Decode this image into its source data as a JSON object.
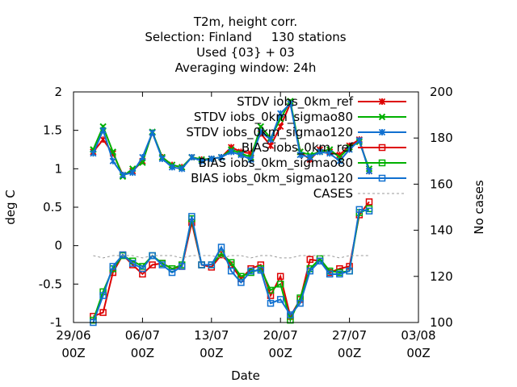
{
  "chart_data": {
    "type": "line",
    "title_lines": [
      "T2m, height corr.",
      "Selection: Finland     130 stations",
      "Used {03} + 03",
      "Averaging window: 24h"
    ],
    "xlabel": "Date",
    "ylabel": "deg C",
    "y2label": "No cases",
    "xlim": [
      0,
      35
    ],
    "ylim": [
      -1,
      2
    ],
    "y2lim": [
      100,
      200
    ],
    "x_ticks": [
      {
        "x": 0,
        "label": "29/06",
        "sub": "00Z"
      },
      {
        "x": 7,
        "label": "06/07",
        "sub": "00Z"
      },
      {
        "x": 14,
        "label": "13/07",
        "sub": "00Z"
      },
      {
        "x": 21,
        "label": "20/07",
        "sub": "00Z"
      },
      {
        "x": 28,
        "label": "27/07",
        "sub": "00Z"
      },
      {
        "x": 35,
        "label": "03/08",
        "sub": "00Z"
      }
    ],
    "y_ticks": [
      {
        "v": -1,
        "label": "-1"
      },
      {
        "v": -0.5,
        "label": "-0.5"
      },
      {
        "v": 0,
        "label": "0"
      },
      {
        "v": 0.5,
        "label": "0.5"
      },
      {
        "v": 1,
        "label": "1"
      },
      {
        "v": 1.5,
        "label": "1.5"
      },
      {
        "v": 2,
        "label": "2"
      }
    ],
    "y2_ticks": [
      {
        "v": 100,
        "label": "100"
      },
      {
        "v": 120,
        "label": "120"
      },
      {
        "v": 140,
        "label": "140"
      },
      {
        "v": 160,
        "label": "160"
      },
      {
        "v": 180,
        "label": "180"
      },
      {
        "v": 200,
        "label": "200"
      }
    ],
    "legend_position": "top-right",
    "series": [
      {
        "name": "STDV iobs_0km_ref",
        "color": "#dd0000",
        "marker": "star",
        "axis": "y",
        "x": [
          2,
          3,
          4,
          5,
          6,
          7,
          8,
          9,
          10,
          11,
          12,
          13,
          14,
          15,
          16,
          17,
          18,
          19,
          20,
          21,
          22,
          23,
          24,
          25,
          26,
          27,
          28,
          29,
          30
        ],
        "y": [
          1.22,
          1.38,
          1.2,
          0.92,
          0.97,
          1.1,
          1.47,
          1.15,
          1.05,
          1.02,
          1.15,
          1.12,
          1.13,
          1.15,
          1.28,
          1.22,
          1.2,
          1.46,
          1.3,
          1.55,
          1.85,
          1.22,
          1.12,
          1.25,
          1.22,
          1.18,
          1.3,
          1.38,
          0.97
        ]
      },
      {
        "name": "STDV iobs_0km_sigmao80",
        "color": "#00b000",
        "marker": "cross",
        "axis": "y",
        "x": [
          2,
          3,
          4,
          5,
          6,
          7,
          8,
          9,
          10,
          11,
          12,
          13,
          14,
          15,
          16,
          17,
          18,
          19,
          20,
          21,
          22,
          23,
          24,
          25,
          26,
          27,
          28,
          29,
          30
        ],
        "y": [
          1.25,
          1.55,
          1.22,
          0.9,
          1.0,
          1.08,
          1.48,
          1.15,
          1.05,
          1.02,
          1.15,
          1.12,
          1.13,
          1.15,
          1.25,
          1.2,
          1.15,
          1.55,
          1.4,
          1.65,
          1.88,
          1.22,
          1.18,
          1.22,
          1.25,
          1.15,
          1.28,
          1.35,
          1.0
        ]
      },
      {
        "name": "STDV iobs_0km_sigmao120",
        "color": "#1070d0",
        "marker": "star",
        "axis": "y",
        "x": [
          2,
          3,
          4,
          5,
          6,
          7,
          8,
          9,
          10,
          11,
          12,
          13,
          14,
          15,
          16,
          17,
          18,
          19,
          20,
          21,
          22,
          23,
          24,
          25,
          26,
          27,
          28,
          29,
          30
        ],
        "y": [
          1.2,
          1.5,
          1.1,
          0.92,
          0.95,
          1.15,
          1.47,
          1.13,
          1.02,
          1.0,
          1.15,
          1.1,
          1.13,
          1.15,
          1.22,
          1.18,
          1.12,
          1.48,
          1.38,
          1.72,
          1.85,
          1.18,
          1.15,
          1.22,
          1.2,
          1.1,
          1.25,
          1.37,
          0.97
        ]
      },
      {
        "name": "BIAS iobs_0km_ref",
        "color": "#dd0000",
        "marker": "square",
        "axis": "y",
        "x": [
          2,
          3,
          4,
          5,
          6,
          7,
          8,
          9,
          10,
          11,
          12,
          13,
          14,
          15,
          16,
          17,
          18,
          19,
          20,
          21,
          22,
          23,
          24,
          25,
          26,
          27,
          28,
          29,
          30
        ],
        "y": [
          -0.92,
          -0.87,
          -0.35,
          -0.12,
          -0.25,
          -0.37,
          -0.25,
          -0.23,
          -0.3,
          -0.27,
          0.3,
          -0.25,
          -0.28,
          -0.12,
          -0.25,
          -0.43,
          -0.3,
          -0.25,
          -0.65,
          -0.4,
          -0.92,
          -0.7,
          -0.18,
          -0.2,
          -0.35,
          -0.3,
          -0.27,
          0.4,
          0.57
        ]
      },
      {
        "name": "BIAS iobs_0km_sigmao80",
        "color": "#00b000",
        "marker": "square",
        "axis": "y",
        "x": [
          2,
          3,
          4,
          5,
          6,
          7,
          8,
          9,
          10,
          11,
          12,
          13,
          14,
          15,
          16,
          17,
          18,
          19,
          20,
          21,
          22,
          23,
          24,
          25,
          26,
          27,
          28,
          29,
          30
        ],
        "y": [
          -0.97,
          -0.6,
          -0.3,
          -0.13,
          -0.2,
          -0.27,
          -0.13,
          -0.23,
          -0.3,
          -0.25,
          0.35,
          -0.25,
          -0.25,
          -0.1,
          -0.22,
          -0.4,
          -0.35,
          -0.3,
          -0.58,
          -0.5,
          -0.97,
          -0.68,
          -0.3,
          -0.17,
          -0.33,
          -0.35,
          -0.33,
          0.43,
          0.48
        ]
      },
      {
        "name": "BIAS iobs_0km_sigmao120",
        "color": "#1070d0",
        "marker": "square",
        "axis": "y",
        "x": [
          2,
          3,
          4,
          5,
          6,
          7,
          8,
          9,
          10,
          11,
          12,
          13,
          14,
          15,
          16,
          17,
          18,
          19,
          20,
          21,
          22,
          23,
          24,
          25,
          26,
          27,
          28,
          29,
          30
        ],
        "y": [
          -1.0,
          -0.65,
          -0.27,
          -0.12,
          -0.23,
          -0.3,
          -0.13,
          -0.25,
          -0.35,
          -0.27,
          0.38,
          -0.25,
          -0.25,
          -0.02,
          -0.33,
          -0.48,
          -0.33,
          -0.32,
          -0.75,
          -0.7,
          -0.9,
          -0.75,
          -0.33,
          -0.2,
          -0.37,
          -0.37,
          -0.33,
          0.47,
          0.45
        ]
      },
      {
        "name": "CASES",
        "color": "#999999",
        "marker": "none",
        "dashed": true,
        "axis": "y2",
        "x": [
          2,
          3,
          4,
          5,
          6,
          7,
          8,
          9,
          10,
          11,
          12,
          13,
          14,
          15,
          16,
          17,
          18,
          19,
          20,
          21,
          22,
          23,
          24,
          25,
          26,
          27,
          28,
          29,
          30
        ],
        "y": [
          129,
          128,
          129,
          129,
          129,
          128,
          129,
          129,
          129,
          128,
          129,
          129,
          129,
          128,
          129,
          129,
          128,
          129,
          129,
          128,
          128,
          129,
          129,
          129,
          129,
          128,
          129,
          129,
          129
        ]
      }
    ]
  }
}
